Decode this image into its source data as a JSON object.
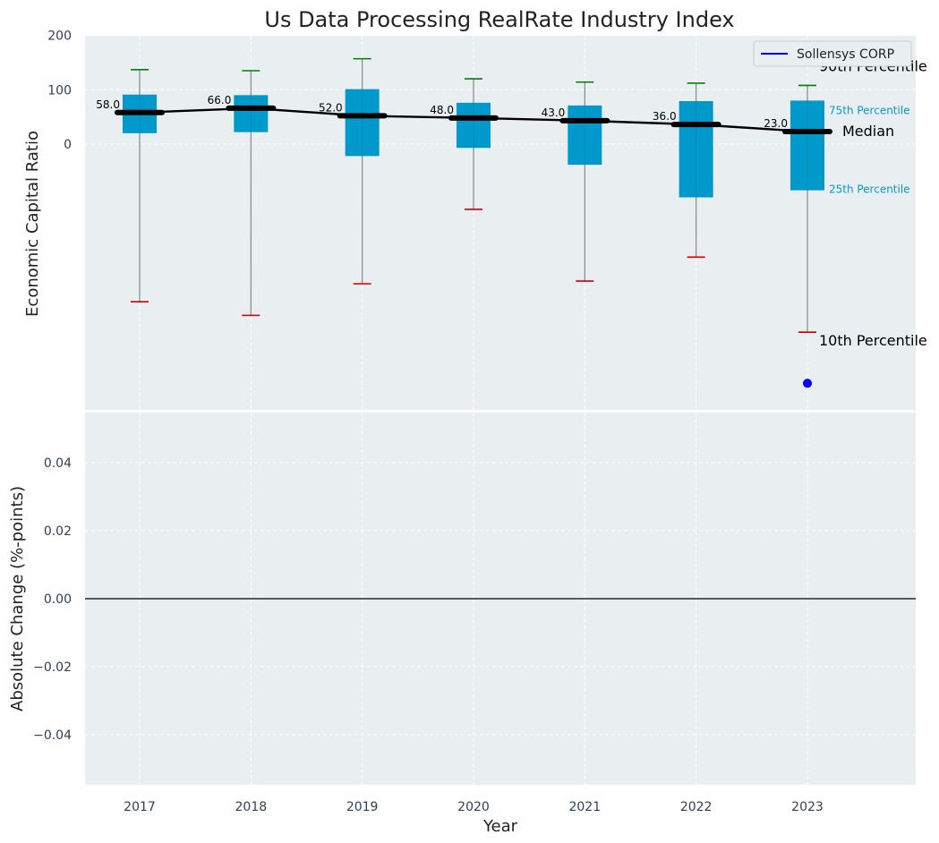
{
  "chart_data": [
    {
      "type": "box",
      "title": "Us Data Processing RealRate Industry Index",
      "ylabel": "Economic Capital Ratio",
      "ylim": [
        -440,
        200
      ],
      "yticks": [
        200,
        100,
        0
      ],
      "categories": [
        "2017",
        "2018",
        "2019",
        "2020",
        "2021",
        "2022",
        "2023"
      ],
      "p90": [
        137,
        135,
        157,
        120,
        114,
        112,
        108
      ],
      "p75": [
        91,
        90,
        101,
        76,
        71,
        79,
        80
      ],
      "median": [
        58,
        66,
        52,
        48,
        43,
        36,
        23
      ],
      "p25": [
        20,
        22,
        -22,
        -7,
        -38,
        -98,
        -85
      ],
      "p10": [
        -290,
        -315,
        -257,
        -120,
        -252,
        -208,
        -346
      ],
      "median_labels": [
        "58.0",
        "66.0",
        "52.0",
        "48.0",
        "43.0",
        "36.0",
        "23.0"
      ],
      "company_point": {
        "name": "Sollensys CORP",
        "x": "2023",
        "y": -440
      },
      "legend": {
        "position": "top-right",
        "entries": [
          "Sollensys CORP"
        ]
      },
      "annotations": {
        "p90": "90th Percentile",
        "p75": "75th Percentile",
        "median": "Median",
        "p25": "25th Percentile",
        "p10": "10th Percentile"
      },
      "grid": true
    },
    {
      "type": "line",
      "ylabel": "Absolute Change (%-points)",
      "xlabel": "Year",
      "ylim": [
        -0.055,
        0.055
      ],
      "yticks": [
        "0.04",
        "0.02",
        "0.00",
        "−0.02",
        "−0.04"
      ],
      "ytick_values": [
        0.04,
        0.02,
        0.0,
        -0.02,
        -0.04
      ],
      "categories": [
        "2017",
        "2018",
        "2019",
        "2020",
        "2021",
        "2022",
        "2023"
      ],
      "series": [],
      "zero_line": true,
      "grid": true
    }
  ],
  "colors": {
    "box": "#0099cc",
    "median_line": "#000000",
    "whisker": "#888888",
    "p90_cap": "#008000",
    "p10_cap": "#cc0000",
    "company": "#0000ff",
    "plot_bg": "#e9eef0",
    "grid": "#ffffff"
  }
}
